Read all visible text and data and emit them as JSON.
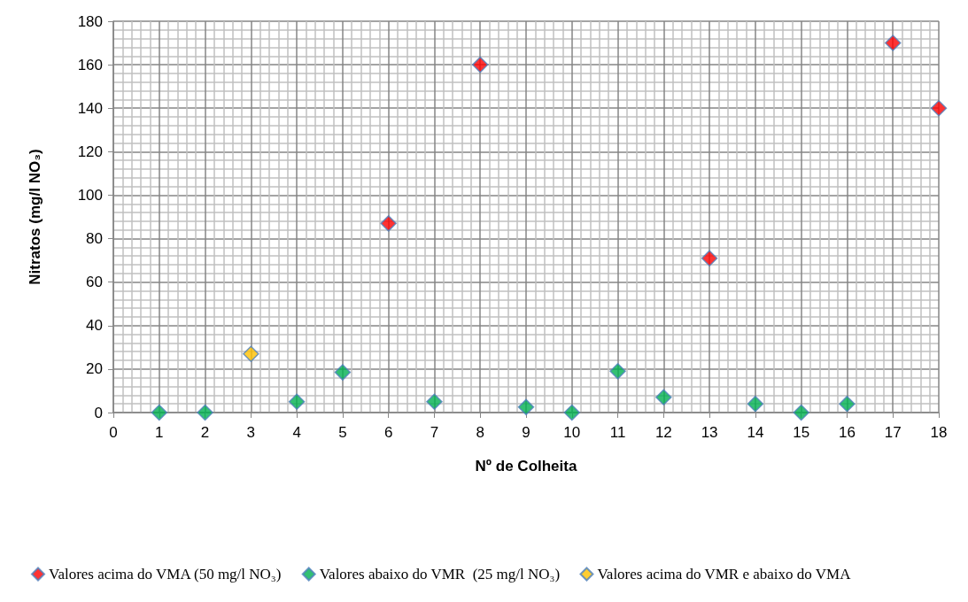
{
  "chart_data": {
    "type": "scatter",
    "xlabel": "Nº de Colheita",
    "ylabel": "Nitratos (mg/l NO₃)",
    "xlim": [
      0,
      18
    ],
    "xticks": [
      0,
      1,
      2,
      3,
      4,
      5,
      6,
      7,
      8,
      9,
      10,
      11,
      12,
      13,
      14,
      15,
      16,
      17,
      18
    ],
    "ylim": [
      0,
      180
    ],
    "yticks": [
      0,
      20,
      40,
      60,
      80,
      100,
      120,
      140,
      160,
      180
    ],
    "grid": true,
    "legend": "bottom",
    "marker": "diamond",
    "series": [
      {
        "name": "Valores acima do VMA (50 mg/l NO₃)",
        "color": "#ff0000",
        "x": [
          6,
          8,
          13,
          17,
          18
        ],
        "values": [
          87,
          160,
          71,
          170,
          140
        ]
      },
      {
        "name": "Valores abaixo do VMR  (25 mg/l NO₃)",
        "color": "#00b050",
        "x": [
          1,
          2,
          4,
          5,
          7,
          9,
          10,
          11,
          12,
          14,
          15,
          16
        ],
        "values": [
          0,
          0,
          5,
          18.5,
          5,
          2.5,
          0,
          19,
          7,
          4,
          0,
          4
        ]
      },
      {
        "name": "Valores acima do VMR e abaixo do VMA",
        "color": "#ffc000",
        "x": [
          3
        ],
        "values": [
          27
        ]
      }
    ]
  }
}
